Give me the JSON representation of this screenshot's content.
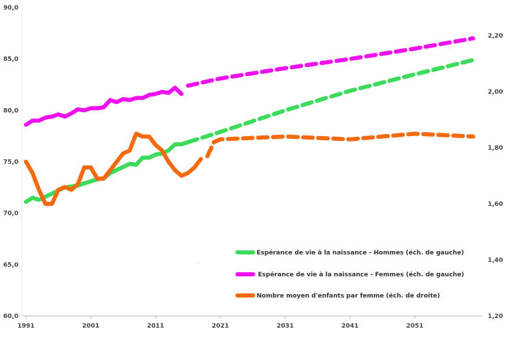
{
  "chart_data": {
    "type": "line",
    "x_range": [
      1991,
      2061
    ],
    "x_ticks": [
      "1991",
      "2001",
      "2011",
      "2021",
      "2031",
      "2041",
      "2051"
    ],
    "y_left": {
      "range": [
        60,
        90
      ],
      "ticks": [
        "60,0",
        "65,0",
        "70,0",
        "75,0",
        "80,0",
        "85,0",
        "90,0"
      ]
    },
    "y_right": {
      "range": [
        1.2,
        2.3
      ],
      "ticks": [
        "1,20",
        "1,40",
        "1,60",
        "1,80",
        "2,00",
        "2,20"
      ]
    },
    "grid": false,
    "legend_position": "bottom-center",
    "series": [
      {
        "name": "Espérance de vie à la naissance - Hommes (éch. de gauche)",
        "axis": "left",
        "color": "#3ddb5c",
        "historical": [
          [
            1991,
            71.1
          ],
          [
            1992,
            71.5
          ],
          [
            1993,
            71.3
          ],
          [
            1994,
            71.6
          ],
          [
            1995,
            71.9
          ],
          [
            1996,
            72.2
          ],
          [
            1997,
            72.5
          ],
          [
            1998,
            72.6
          ],
          [
            1999,
            72.7
          ],
          [
            2000,
            72.9
          ],
          [
            2001,
            73.1
          ],
          [
            2002,
            73.3
          ],
          [
            2003,
            73.4
          ],
          [
            2004,
            73.9
          ],
          [
            2005,
            74.2
          ],
          [
            2006,
            74.5
          ],
          [
            2007,
            74.8
          ],
          [
            2008,
            74.7
          ],
          [
            2009,
            75.4
          ],
          [
            2010,
            75.4
          ],
          [
            2011,
            75.7
          ],
          [
            2012,
            75.8
          ],
          [
            2013,
            76.1
          ],
          [
            2014,
            76.7
          ],
          [
            2015,
            76.7
          ],
          [
            2016,
            76.9
          ]
        ],
        "projection": [
          [
            2016,
            76.9
          ],
          [
            2021,
            77.9
          ],
          [
            2031,
            80.0
          ],
          [
            2041,
            81.9
          ],
          [
            2051,
            83.5
          ],
          [
            2060,
            84.9
          ]
        ]
      },
      {
        "name": "Espérance de vie à la naissance - Femmes (éch. de gauche)",
        "axis": "left",
        "color": "#ee11ee",
        "historical": [
          [
            1991,
            78.6
          ],
          [
            1992,
            79.0
          ],
          [
            1993,
            79.0
          ],
          [
            1994,
            79.3
          ],
          [
            1995,
            79.4
          ],
          [
            1996,
            79.6
          ],
          [
            1997,
            79.4
          ],
          [
            1998,
            79.7
          ],
          [
            1999,
            80.1
          ],
          [
            2000,
            80.0
          ],
          [
            2001,
            80.2
          ],
          [
            2002,
            80.2
          ],
          [
            2003,
            80.3
          ],
          [
            2004,
            81.0
          ],
          [
            2005,
            80.8
          ],
          [
            2006,
            81.1
          ],
          [
            2007,
            81.0
          ],
          [
            2008,
            81.2
          ],
          [
            2009,
            81.2
          ],
          [
            2010,
            81.5
          ],
          [
            2011,
            81.6
          ],
          [
            2012,
            81.8
          ],
          [
            2013,
            81.7
          ],
          [
            2014,
            82.2
          ],
          [
            2015,
            81.6
          ]
        ],
        "projection": [
          [
            2016,
            82.4
          ],
          [
            2021,
            83.1
          ],
          [
            2031,
            84.1
          ],
          [
            2041,
            85.0
          ],
          [
            2051,
            86.0
          ],
          [
            2060,
            87.0
          ]
        ]
      },
      {
        "name": "Nombre moyen d'enfants par femme (éch. de droite)",
        "axis": "right",
        "color": "#f36a10",
        "historical": [
          [
            1991,
            1.75
          ],
          [
            1992,
            1.71
          ],
          [
            1993,
            1.65
          ],
          [
            1994,
            1.6
          ],
          [
            1995,
            1.6
          ],
          [
            1996,
            1.65
          ],
          [
            1997,
            1.66
          ],
          [
            1998,
            1.65
          ],
          [
            1999,
            1.67
          ],
          [
            2000,
            1.73
          ],
          [
            2001,
            1.73
          ],
          [
            2002,
            1.69
          ],
          [
            2003,
            1.69
          ],
          [
            2004,
            1.72
          ],
          [
            2005,
            1.75
          ],
          [
            2006,
            1.78
          ],
          [
            2007,
            1.79
          ],
          [
            2008,
            1.85
          ],
          [
            2009,
            1.84
          ],
          [
            2010,
            1.84
          ],
          [
            2011,
            1.81
          ],
          [
            2012,
            1.79
          ],
          [
            2013,
            1.75
          ],
          [
            2014,
            1.72
          ],
          [
            2015,
            1.7
          ],
          [
            2016,
            1.71
          ],
          [
            2017,
            1.73
          ],
          [
            2018,
            1.76
          ]
        ],
        "projection": [
          [
            2019,
            1.77
          ],
          [
            2020,
            1.82
          ],
          [
            2021,
            1.83
          ],
          [
            2031,
            1.84
          ],
          [
            2041,
            1.83
          ],
          [
            2051,
            1.85
          ],
          [
            2060,
            1.84
          ]
        ]
      }
    ]
  }
}
